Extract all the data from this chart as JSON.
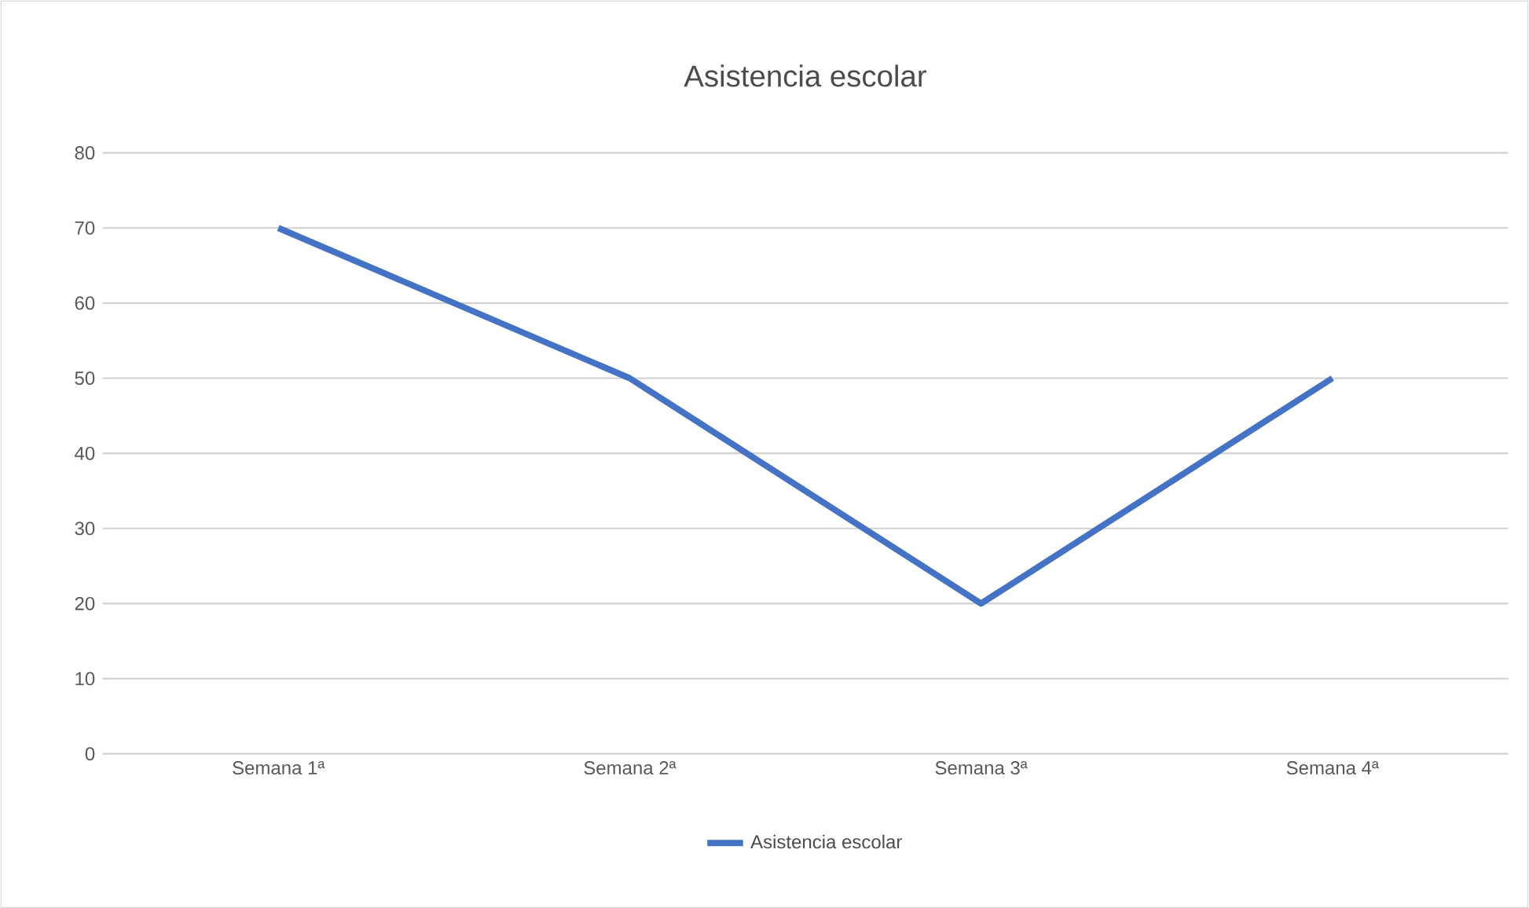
{
  "chart_data": {
    "type": "line",
    "title": "Asistencia escolar",
    "categories": [
      "Semana 1ª",
      "Semana 2ª",
      "Semana 3ª",
      "Semana 4ª"
    ],
    "series": [
      {
        "name": "Asistencia escolar",
        "color": "#4472c4",
        "values": [
          70,
          50,
          20,
          50
        ]
      }
    ],
    "ylim": [
      0,
      80
    ],
    "yticks": [
      0,
      10,
      20,
      30,
      40,
      50,
      60,
      70,
      80
    ],
    "grid": "y",
    "legend": "bottom",
    "marker": "none"
  }
}
